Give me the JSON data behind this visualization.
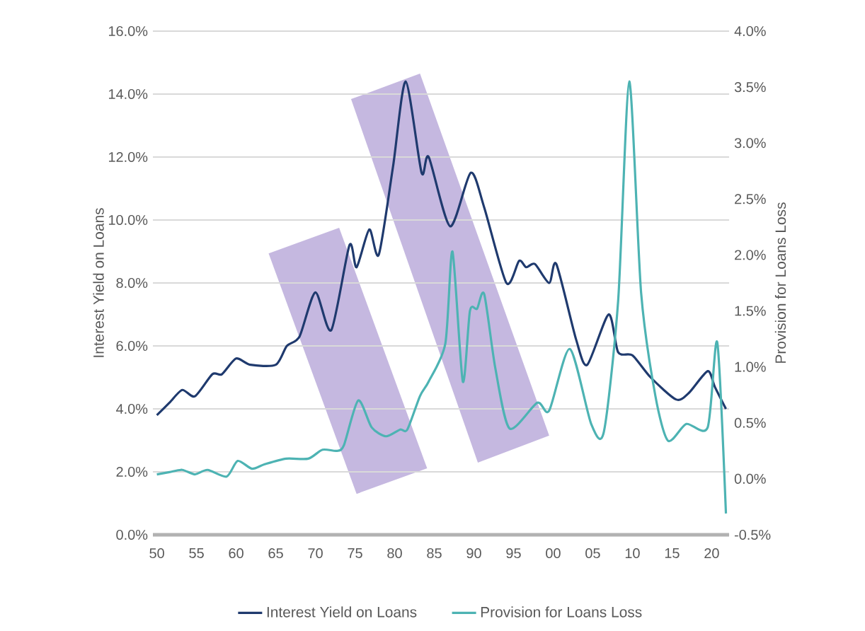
{
  "chart_data": {
    "type": "line",
    "ylabel": "Interest Yield on Loans",
    "y2label": "Provision for Loans Loss",
    "xlim": [
      1949.5,
      2022.2
    ],
    "xticks": [
      {
        "value": 1950,
        "label": "50"
      },
      {
        "value": 1955,
        "label": "55"
      },
      {
        "value": 1960,
        "label": "60"
      },
      {
        "value": 1965,
        "label": "65"
      },
      {
        "value": 1970,
        "label": "70"
      },
      {
        "value": 1975,
        "label": "75"
      },
      {
        "value": 1980,
        "label": "80"
      },
      {
        "value": 1985,
        "label": "85"
      },
      {
        "value": 1990,
        "label": "90"
      },
      {
        "value": 1995,
        "label": "95"
      },
      {
        "value": 2000,
        "label": "00"
      },
      {
        "value": 2005,
        "label": "05"
      },
      {
        "value": 2010,
        "label": "10"
      },
      {
        "value": 2015,
        "label": "15"
      },
      {
        "value": 2020,
        "label": "20"
      }
    ],
    "ylim": [
      0,
      16
    ],
    "yticks": [
      {
        "value": 0,
        "label": "0.0%"
      },
      {
        "value": 2,
        "label": "2.0%"
      },
      {
        "value": 4,
        "label": "4.0%"
      },
      {
        "value": 6,
        "label": "6.0%"
      },
      {
        "value": 8,
        "label": "8.0%"
      },
      {
        "value": 10,
        "label": "10.0%"
      },
      {
        "value": 12,
        "label": "12.0%"
      },
      {
        "value": 14,
        "label": "14.0%"
      },
      {
        "value": 16,
        "label": "16.0%"
      }
    ],
    "y2lim": [
      -0.5,
      4
    ],
    "y2ticks": [
      {
        "value": -0.5,
        "label": "-0.5%"
      },
      {
        "value": 0,
        "label": "0.0%"
      },
      {
        "value": 0.5,
        "label": "0.5%"
      },
      {
        "value": 1,
        "label": "1.0%"
      },
      {
        "value": 1.5,
        "label": "1.5%"
      },
      {
        "value": 2,
        "label": "2.0%"
      },
      {
        "value": 2.5,
        "label": "2.5%"
      },
      {
        "value": 3,
        "label": "3.0%"
      },
      {
        "value": 3.5,
        "label": "3.5%"
      },
      {
        "value": 4,
        "label": "4.0%"
      }
    ],
    "grid": "y",
    "legend": "bottom",
    "series": [
      {
        "name": "Interest Yield on Loans",
        "color": "#1f3a6e",
        "x": [
          1950,
          1951.6,
          1953.2,
          1954.8,
          1957,
          1958.2,
          1960,
          1961.8,
          1965,
          1966.4,
          1968,
          1970,
          1972,
          1974.3,
          1975.2,
          1976.8,
          1978,
          1979.8,
          1981.4,
          1983.4,
          1984.3,
          1987,
          1989.6,
          1991.3,
          1994.1,
          1995.7,
          1996.6,
          1997.7,
          1999.5,
          2000.4,
          2002.9,
          2004.3,
          2007,
          2008.2,
          2010,
          2012.3,
          2015.5,
          2017.1,
          2019.5,
          2020.4,
          2021.8
        ],
        "values": [
          3.8,
          4.2,
          4.6,
          4.4,
          5.1,
          5.1,
          5.6,
          5.4,
          5.4,
          6.0,
          6.3,
          7.7,
          6.5,
          9.2,
          8.5,
          9.7,
          8.9,
          11.7,
          14.4,
          11.5,
          12.0,
          9.8,
          11.5,
          10.4,
          8.0,
          8.7,
          8.5,
          8.6,
          8.0,
          8.6,
          6.2,
          5.4,
          7.0,
          5.8,
          5.7,
          5.0,
          4.3,
          4.5,
          5.2,
          4.7,
          4.0
        ]
      },
      {
        "name": "Provision for Loans Loss",
        "color": "#4db3b3",
        "axis": "y2",
        "x": [
          1950,
          1951.6,
          1953.2,
          1954.8,
          1956.4,
          1958.8,
          1960.2,
          1962,
          1963.6,
          1966.3,
          1969.1,
          1970.9,
          1972.7,
          1973.6,
          1975.4,
          1977.1,
          1978.9,
          1980.7,
          1981.6,
          1983.2,
          1984.3,
          1986.4,
          1987.3,
          1988.6,
          1989.5,
          1990.4,
          1991.3,
          1992.7,
          1994.5,
          1998.0,
          1999.5,
          2002.1,
          2004.8,
          2006.4,
          2008.2,
          2009.6,
          2011.1,
          2012.9,
          2014.5,
          2016.8,
          2019.5,
          2020.7,
          2021.8
        ],
        "values": [
          0.04,
          0.06,
          0.08,
          0.04,
          0.08,
          0.02,
          0.16,
          0.09,
          0.13,
          0.18,
          0.18,
          0.26,
          0.25,
          0.3,
          0.7,
          0.46,
          0.38,
          0.44,
          0.44,
          0.74,
          0.87,
          1.21,
          2.03,
          0.87,
          1.5,
          1.52,
          1.65,
          0.99,
          0.45,
          0.68,
          0.61,
          1.16,
          0.49,
          0.42,
          1.59,
          3.55,
          1.66,
          0.74,
          0.34,
          0.49,
          0.46,
          1.22,
          -0.31
        ]
      }
    ]
  }
}
